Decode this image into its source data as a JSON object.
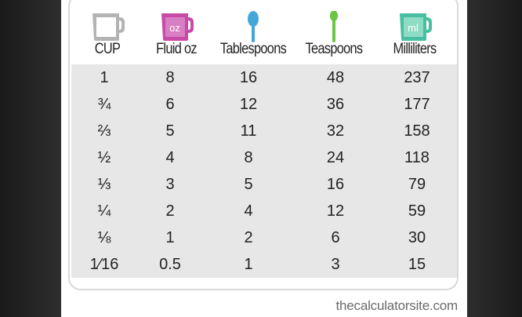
{
  "columns": [
    {
      "label": "CUP",
      "icon": "measuring-cup-gray-icon",
      "color": "#b3b3b3"
    },
    {
      "label": "Fluid oz",
      "icon": "measuring-cup-oz-icon",
      "color": "#c94ba8",
      "icon_text": "oz"
    },
    {
      "label": "Tablespoons",
      "icon": "tablespoon-icon",
      "color": "#45a6d8"
    },
    {
      "label": "Teaspoons",
      "icon": "teaspoon-icon",
      "color": "#6cc444"
    },
    {
      "label": "Milliliters",
      "icon": "measuring-cup-ml-icon",
      "color": "#48bfa0",
      "icon_text": "ml"
    }
  ],
  "rows": [
    [
      "1",
      "8",
      "16",
      "48",
      "237"
    ],
    [
      "¾",
      "6",
      "12",
      "36",
      "177"
    ],
    [
      "⅔",
      "5",
      "11",
      "32",
      "158"
    ],
    [
      "½",
      "4",
      "8",
      "24",
      "118"
    ],
    [
      "⅓",
      "3",
      "5",
      "16",
      "79"
    ],
    [
      "¼",
      "2",
      "4",
      "12",
      "59"
    ],
    [
      "⅛",
      "1",
      "2",
      "6",
      "30"
    ],
    [
      "1⁄16",
      "0.5",
      "1",
      "3",
      "15"
    ]
  ],
  "watermark": "thecalculatorsite.com"
}
